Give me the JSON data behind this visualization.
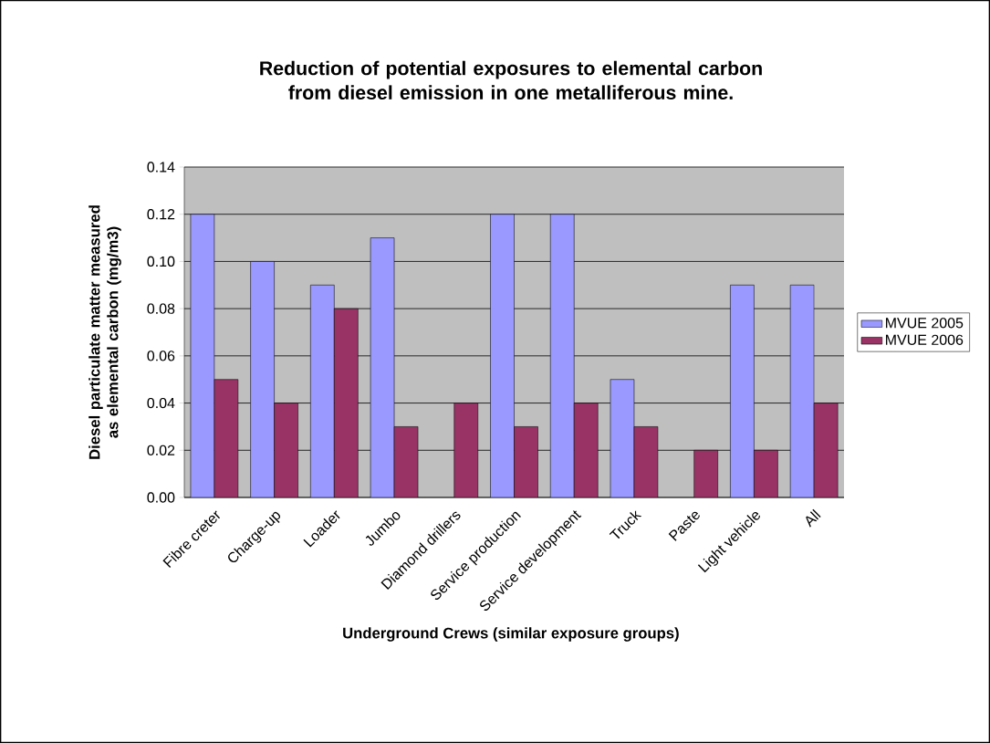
{
  "chart_data": {
    "type": "bar",
    "title": "Reduction of potential exposures to elemental carbon from diesel emission in one metalliferous mine.",
    "xlabel": "Underground Crews (similar exposure groups)",
    "ylabel": "Diesel particulate matter measured as elemental carbon (mg/m3)",
    "categories": [
      "Fibre creter",
      "Charge-up",
      "Loader",
      "Jumbo",
      "Diamond drillers",
      "Service production",
      "Service development",
      "Truck",
      "Paste",
      "Light vehicle",
      "All"
    ],
    "series": [
      {
        "name": "MVUE 2005",
        "color": "#9999ff",
        "values": [
          0.12,
          0.1,
          0.09,
          0.11,
          null,
          0.12,
          0.12,
          0.05,
          null,
          0.09,
          0.09
        ]
      },
      {
        "name": "MVUE 2006",
        "color": "#993366",
        "values": [
          0.05,
          0.04,
          0.08,
          0.03,
          0.04,
          0.03,
          0.04,
          0.03,
          0.02,
          0.02,
          0.04
        ]
      }
    ],
    "ylim": [
      0,
      0.14
    ],
    "yticks": [
      {
        "value": 0,
        "label": "0.00"
      },
      {
        "value": 0.02,
        "label": "0.02"
      },
      {
        "value": 0.04,
        "label": "0.04"
      },
      {
        "value": 0.06,
        "label": "0.06"
      },
      {
        "value": 0.08,
        "label": "0.08"
      },
      {
        "value": 0.1,
        "label": "0.10"
      },
      {
        "value": 0.12,
        "label": "0.12"
      },
      {
        "value": 0.14,
        "label": "0.14"
      }
    ],
    "grid": "y",
    "legend": "right"
  }
}
